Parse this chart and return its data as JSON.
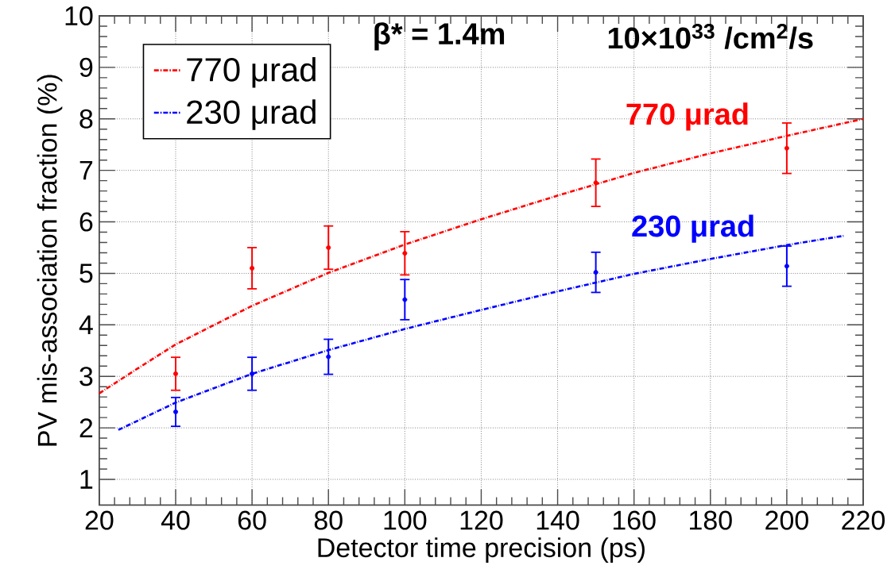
{
  "chart_data": {
    "type": "line",
    "xlabel": "Detector time precision (ps)",
    "ylabel": "PV mis-association fraction (%)",
    "xlim": [
      20,
      220
    ],
    "xticks": [
      20,
      40,
      60,
      80,
      100,
      120,
      140,
      160,
      180,
      200,
      220
    ],
    "ylim": [
      0.5,
      10
    ],
    "yticks": [
      1,
      2,
      3,
      4,
      5,
      6,
      7,
      8,
      9,
      10
    ],
    "grid": true,
    "legend": "top left",
    "line_style": "dotted",
    "marker": "none",
    "series": [
      {
        "name": "770 μrad",
        "color": "#ff0000",
        "x": [
          20,
          30,
          40,
          60,
          80,
          100,
          120,
          140,
          160,
          180,
          200,
          220
        ],
        "values": [
          2.67,
          3.15,
          3.62,
          4.37,
          5.01,
          5.56,
          6.05,
          6.51,
          6.95,
          7.33,
          7.67,
          8.0
        ]
      },
      {
        "name": "230 μrad",
        "color": "#0000ff",
        "x": [
          25,
          40,
          60,
          80,
          100,
          120,
          140,
          160,
          180,
          200,
          215
        ],
        "values": [
          1.96,
          2.49,
          3.05,
          3.51,
          3.92,
          4.29,
          4.65,
          4.99,
          5.28,
          5.55,
          5.73
        ]
      },
      {
        "color": "#ff0000",
        "type": "scatter",
        "marker": "circle",
        "x": [
          40,
          60,
          80,
          100,
          150,
          200
        ],
        "values": [
          3.05,
          5.1,
          5.5,
          5.39,
          6.76,
          7.43
        ],
        "errors": [
          0.32,
          0.4,
          0.42,
          0.42,
          0.46,
          0.49
        ]
      },
      {
        "color": "#0000ff",
        "type": "scatter",
        "marker": "circle",
        "x": [
          40,
          60,
          80,
          100,
          150,
          200
        ],
        "values": [
          2.31,
          3.05,
          3.38,
          4.49,
          5.02,
          5.14
        ],
        "errors": [
          0.28,
          0.32,
          0.34,
          0.39,
          0.39,
          0.39
        ]
      }
    ],
    "annotations": [
      "770 μrad",
      "230 μrad",
      "β* = 1.4m",
      "10×10$^{33}$ /cm$^{2}$/s"
    ]
  }
}
